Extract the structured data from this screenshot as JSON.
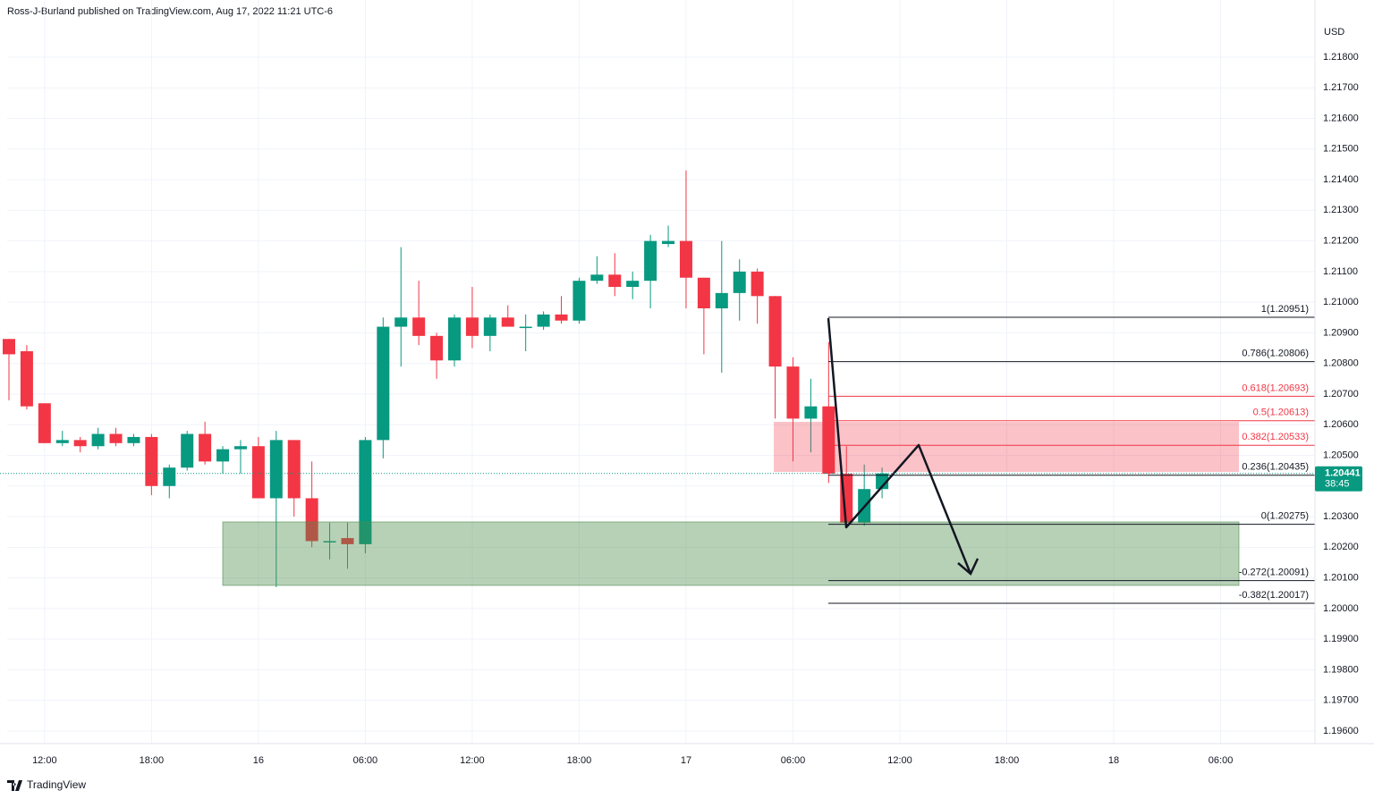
{
  "header": "Ross-J-Burland published on TradingView.com, Aug 17, 2022 11:21 UTC-6",
  "footer": "TradingView",
  "chart_data": {
    "type": "candlestick",
    "currency": "USD",
    "up_color": "#089981",
    "down_color": "#f23645",
    "grid": true,
    "categories": [
      null,
      null,
      "12:00",
      null,
      null,
      null,
      null,
      null,
      "18:00",
      null,
      null,
      null,
      null,
      null,
      "16",
      null,
      null,
      null,
      null,
      null,
      "06:00",
      null,
      null,
      null,
      null,
      null,
      "12:00",
      null,
      null,
      null,
      null,
      null,
      "18:00",
      null,
      null,
      null,
      null,
      null,
      "17",
      null,
      null,
      null,
      null,
      null,
      "06:00",
      null,
      null,
      null,
      null,
      null,
      "12:00",
      null,
      null,
      null,
      null,
      null,
      "18:00",
      null,
      null,
      null,
      null,
      null,
      "18",
      null,
      null,
      null,
      null,
      null,
      "06:00",
      null,
      null,
      null,
      null,
      null
    ],
    "open": [
      1.2088,
      1.2084,
      1.2067,
      1.2054,
      1.2055,
      1.2053,
      1.2057,
      1.2054,
      1.2056,
      1.204,
      1.2046,
      1.2057,
      1.2048,
      1.2052,
      1.2053,
      1.2036,
      1.2055,
      1.2036,
      1.2022,
      1.2023,
      1.2021,
      1.2055,
      1.2092,
      1.2095,
      1.2089,
      1.2081,
      1.2095,
      1.2089,
      1.2095,
      1.2092,
      1.2092,
      1.2096,
      1.2094,
      1.2107,
      1.2109,
      1.2105,
      1.2107,
      1.2119,
      1.212,
      1.2108,
      1.2098,
      1.2103,
      1.211,
      1.2102,
      1.2079,
      1.2062,
      1.2066,
      1.2044,
      1.2028,
      1.2039,
      null,
      null,
      null,
      null,
      null,
      null,
      null,
      null,
      null,
      null,
      null,
      null,
      null,
      null,
      null,
      null,
      null,
      null,
      null,
      null,
      null,
      null,
      null,
      null
    ],
    "high": [
      1.2088,
      1.2086,
      1.2067,
      1.2058,
      1.2056,
      1.2059,
      1.2059,
      1.2057,
      1.2057,
      1.2047,
      1.2058,
      1.2061,
      1.2053,
      1.2055,
      1.2056,
      1.2058,
      1.2055,
      1.2048,
      1.2028,
      1.2028,
      1.2056,
      1.2095,
      1.2118,
      1.2107,
      1.209,
      1.2096,
      1.2105,
      1.2096,
      1.2099,
      1.2096,
      1.2097,
      1.2102,
      1.2108,
      1.2115,
      1.2116,
      1.211,
      1.2122,
      1.2125,
      1.2143,
      1.2108,
      1.212,
      1.2114,
      1.2111,
      1.2102,
      1.2082,
      1.2075,
      1.2087,
      1.2053,
      1.2047,
      1.2046,
      null,
      null,
      null,
      null,
      null,
      null,
      null,
      null,
      null,
      null,
      null,
      null,
      null,
      null,
      null,
      null,
      null,
      null,
      null,
      null,
      null,
      null,
      null,
      null
    ],
    "low": [
      1.2068,
      1.2065,
      1.2054,
      1.2053,
      1.2051,
      1.2052,
      1.2053,
      1.2053,
      1.2037,
      1.2036,
      1.2045,
      1.2047,
      1.2044,
      1.2044,
      1.2036,
      1.2007,
      1.203,
      1.202,
      1.2016,
      1.2013,
      1.2018,
      1.2049,
      1.2079,
      1.2086,
      1.2075,
      1.2079,
      1.2085,
      1.2084,
      1.2092,
      1.2084,
      1.2091,
      1.2093,
      1.2093,
      1.2106,
      1.2102,
      1.2101,
      1.2098,
      1.2118,
      1.2098,
      1.2083,
      1.2077,
      1.2094,
      1.2093,
      1.2062,
      1.2048,
      1.2051,
      1.2041,
      1.2027,
      1.2027,
      1.2036,
      null,
      null,
      null,
      null,
      null,
      null,
      null,
      null,
      null,
      null,
      null,
      null,
      null,
      null,
      null,
      null,
      null,
      null,
      null,
      null,
      null,
      null,
      null,
      null
    ],
    "close": [
      1.2083,
      1.2066,
      1.2054,
      1.2055,
      1.2053,
      1.2057,
      1.2054,
      1.2056,
      1.204,
      1.2046,
      1.2057,
      1.2048,
      1.2052,
      1.2053,
      1.2036,
      1.2055,
      1.2036,
      1.2022,
      1.2022,
      1.2021,
      1.2055,
      1.2092,
      1.2095,
      1.2089,
      1.2081,
      1.2095,
      1.2089,
      1.2095,
      1.2092,
      1.2092,
      1.2096,
      1.2094,
      1.2107,
      1.2109,
      1.2105,
      1.2107,
      1.212,
      1.212,
      1.2108,
      1.2098,
      1.2103,
      1.211,
      1.2102,
      1.2079,
      1.2062,
      1.2066,
      1.2044,
      1.2028,
      1.2039,
      1.20441,
      null,
      null,
      null,
      null,
      null,
      null,
      null,
      null,
      null,
      null,
      null,
      null,
      null,
      null,
      null,
      null,
      null,
      null,
      null,
      null,
      null,
      null,
      null,
      null
    ],
    "ylim": [
      1.19559,
      1.21905
    ],
    "yticks": [
      {
        "value": 1.196,
        "label": "1.19600"
      },
      {
        "value": 1.197,
        "label": "1.19700"
      },
      {
        "value": 1.198,
        "label": "1.19800"
      },
      {
        "value": 1.199,
        "label": "1.19900"
      },
      {
        "value": 1.2,
        "label": "1.20000"
      },
      {
        "value": 1.201,
        "label": "1.20100"
      },
      {
        "value": 1.202,
        "label": "1.20200"
      },
      {
        "value": 1.203,
        "label": "1.20300"
      },
      {
        "value": 1.204,
        "label": "1.20400"
      },
      {
        "value": 1.205,
        "label": "1.20500"
      },
      {
        "value": 1.206,
        "label": "1.20600"
      },
      {
        "value": 1.207,
        "label": "1.20700"
      },
      {
        "value": 1.208,
        "label": "1.20800"
      },
      {
        "value": 1.209,
        "label": "1.20900"
      },
      {
        "value": 1.21,
        "label": "1.21000"
      },
      {
        "value": 1.211,
        "label": "1.21100"
      },
      {
        "value": 1.212,
        "label": "1.21200"
      },
      {
        "value": 1.213,
        "label": "1.21300"
      },
      {
        "value": 1.214,
        "label": "1.21400"
      },
      {
        "value": 1.215,
        "label": "1.21500"
      },
      {
        "value": 1.216,
        "label": "1.21600"
      },
      {
        "value": 1.217,
        "label": "1.21700"
      },
      {
        "value": 1.218,
        "label": "1.21800"
      }
    ],
    "last_price": {
      "value": 1.20441,
      "countdown": "38:45"
    },
    "fib_levels": [
      {
        "label": "1(1.20951)",
        "price": 1.20951,
        "color": "#131722"
      },
      {
        "label": "0.786(1.20806)",
        "price": 1.20806,
        "color": "#131722"
      },
      {
        "label": "0.618(1.20693)",
        "price": 1.20693,
        "color": "#f23645"
      },
      {
        "label": "0.5(1.20613)",
        "price": 1.20613,
        "color": "#f23645"
      },
      {
        "label": "0.382(1.20533)",
        "price": 1.20533,
        "color": "#f23645"
      },
      {
        "label": "0.236(1.20435)",
        "price": 1.20435,
        "color": "#131722"
      },
      {
        "label": "0(1.20275)",
        "price": 1.20275,
        "color": "#131722"
      },
      {
        "label": "-0.272(1.20091)",
        "price": 1.20091,
        "color": "#131722"
      },
      {
        "label": "-0.382(1.20017)",
        "price": 1.20017,
        "color": "#131722"
      }
    ]
  }
}
